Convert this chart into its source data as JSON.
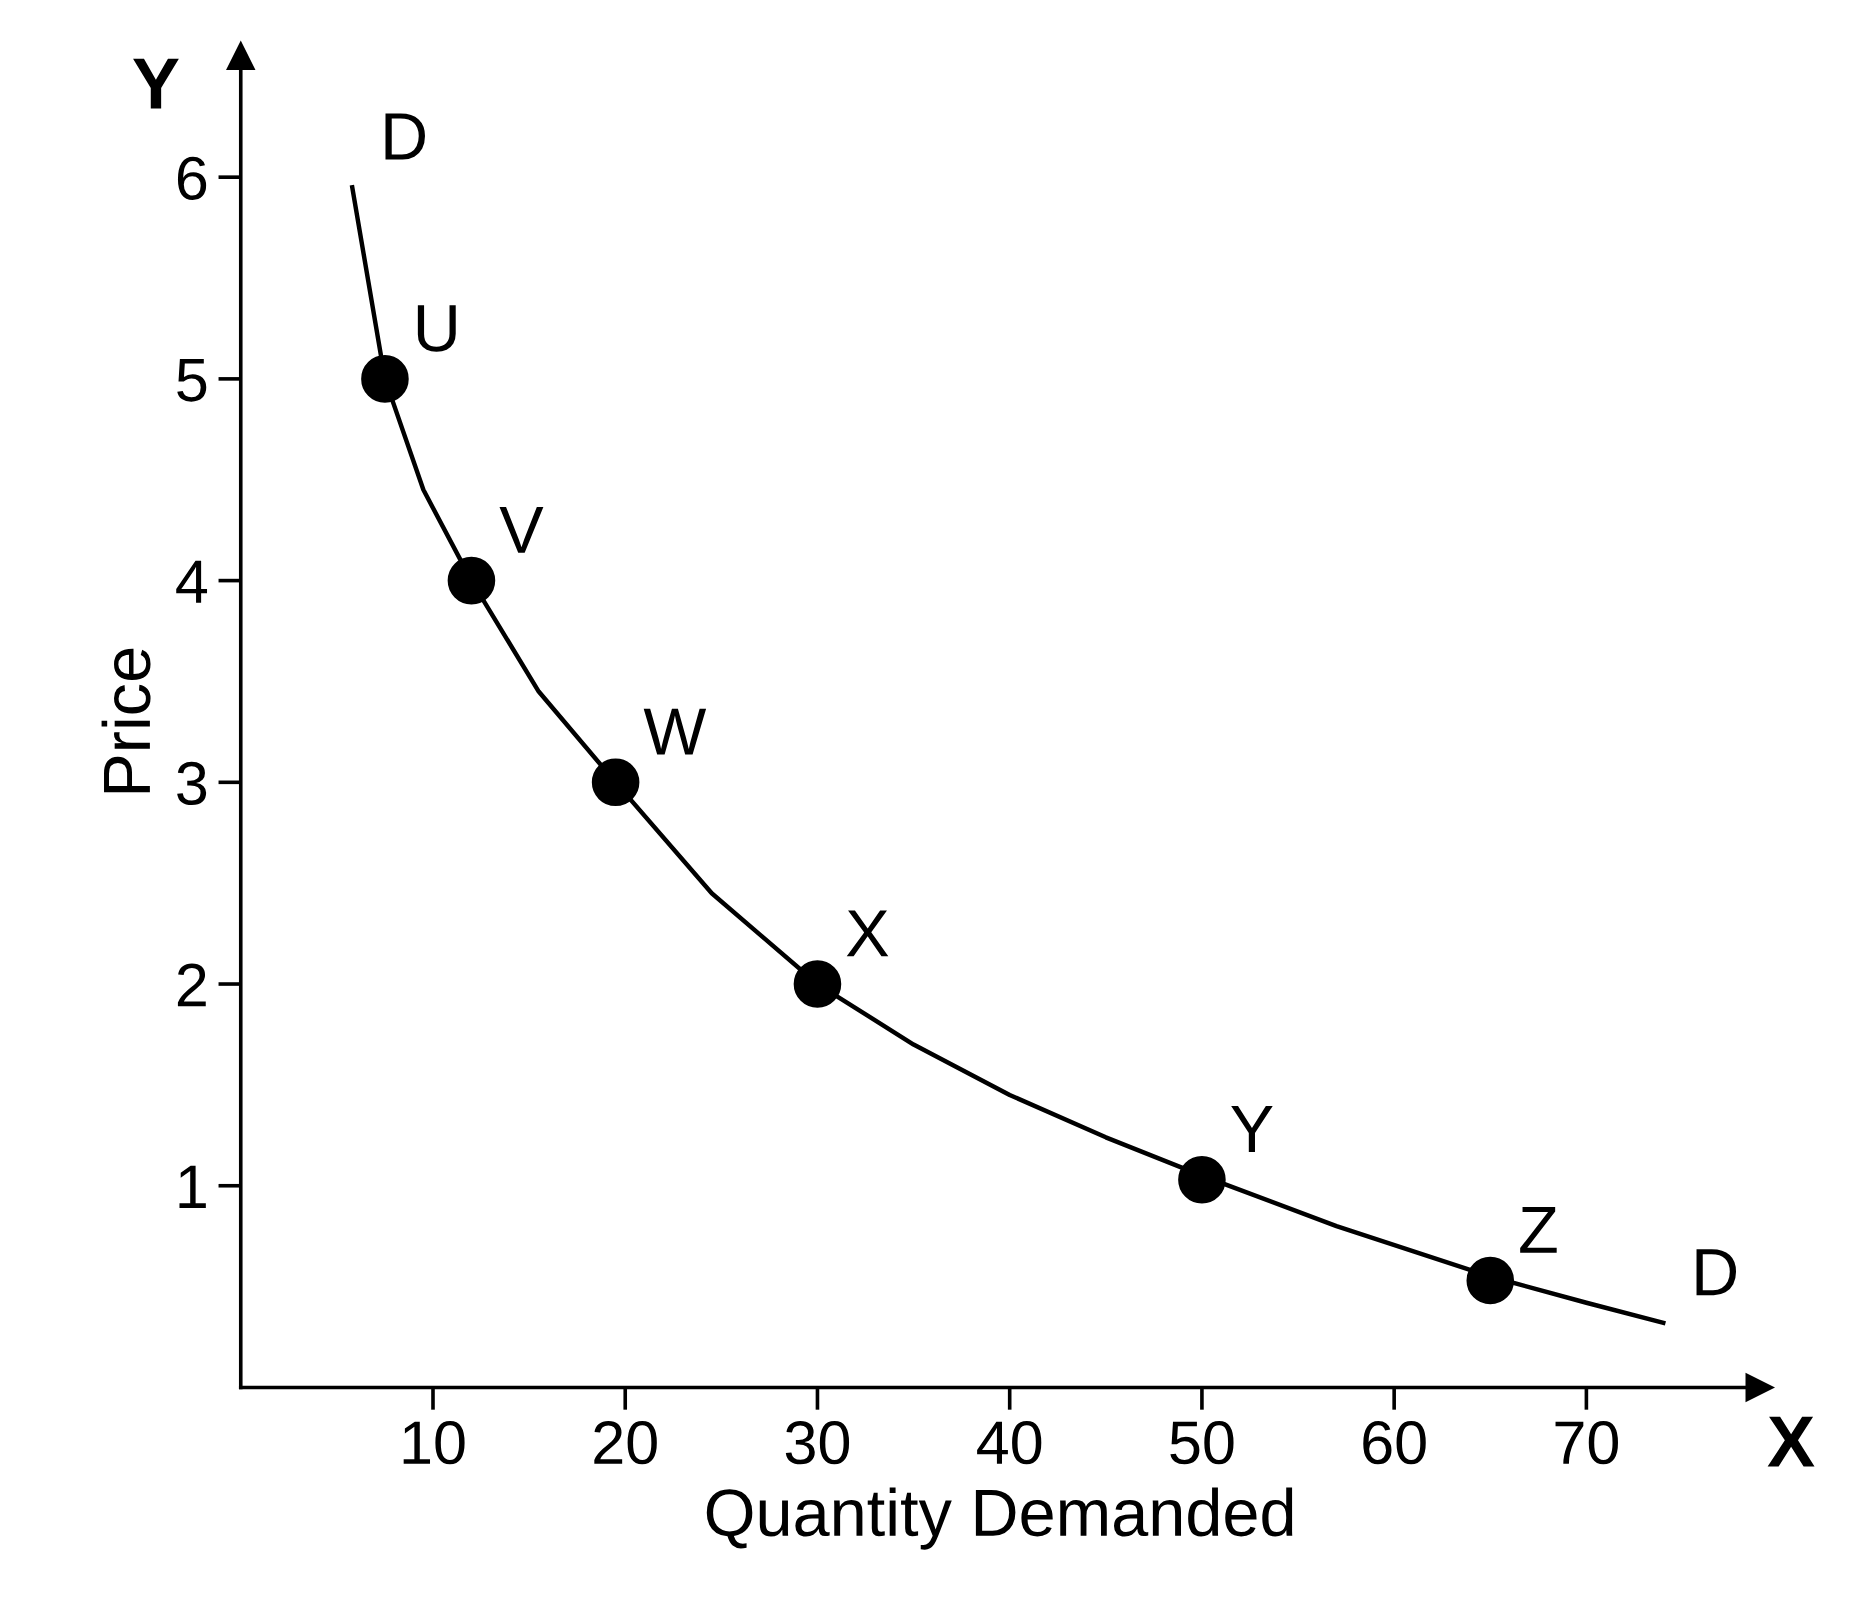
{
  "chart_data": {
    "type": "line",
    "xlabel": "Quantity Demanded",
    "ylabel": "Price",
    "xlim": [
      0,
      79
    ],
    "ylim": [
      0,
      6.6
    ],
    "xticks": [
      10,
      20,
      30,
      40,
      50,
      60,
      70
    ],
    "yticks": [
      1,
      2,
      3,
      4,
      5,
      6
    ],
    "grid": false,
    "legend": false,
    "series": [
      {
        "color": "#000000",
        "marker": "none",
        "x": [
          5.8,
          7.5,
          9.5,
          12,
          15.5,
          19.5,
          24.5,
          30,
          35,
          40,
          45,
          50,
          57,
          65,
          70,
          74
        ],
        "values": [
          5.95,
          5,
          4.45,
          4,
          3.45,
          3,
          2.45,
          2,
          1.7,
          1.45,
          1.24,
          1.05,
          0.8,
          0.55,
          0.42,
          0.32
        ]
      },
      {
        "type": "scatter",
        "color": "#000000",
        "marker": "circle",
        "x": [
          7.5,
          12,
          19.5,
          30,
          50,
          65
        ],
        "values": [
          5,
          4,
          3,
          2,
          1.03,
          0.53
        ]
      }
    ],
    "annotations": [
      {
        "text": "U",
        "x": 7.5,
        "y": 5
      },
      {
        "text": "V",
        "x": 12,
        "y": 4
      },
      {
        "text": "W",
        "x": 19.5,
        "y": 3
      },
      {
        "text": "X",
        "x": 30,
        "y": 2
      },
      {
        "text": "Y",
        "x": 50,
        "y": 1.03
      },
      {
        "text": "Z",
        "x": 65,
        "y": 0.53
      },
      {
        "text": "D",
        "x": 5.8,
        "y": 5.95
      },
      {
        "text": "D",
        "x": 74,
        "y": 0.32
      },
      "Y",
      "X"
    ]
  }
}
